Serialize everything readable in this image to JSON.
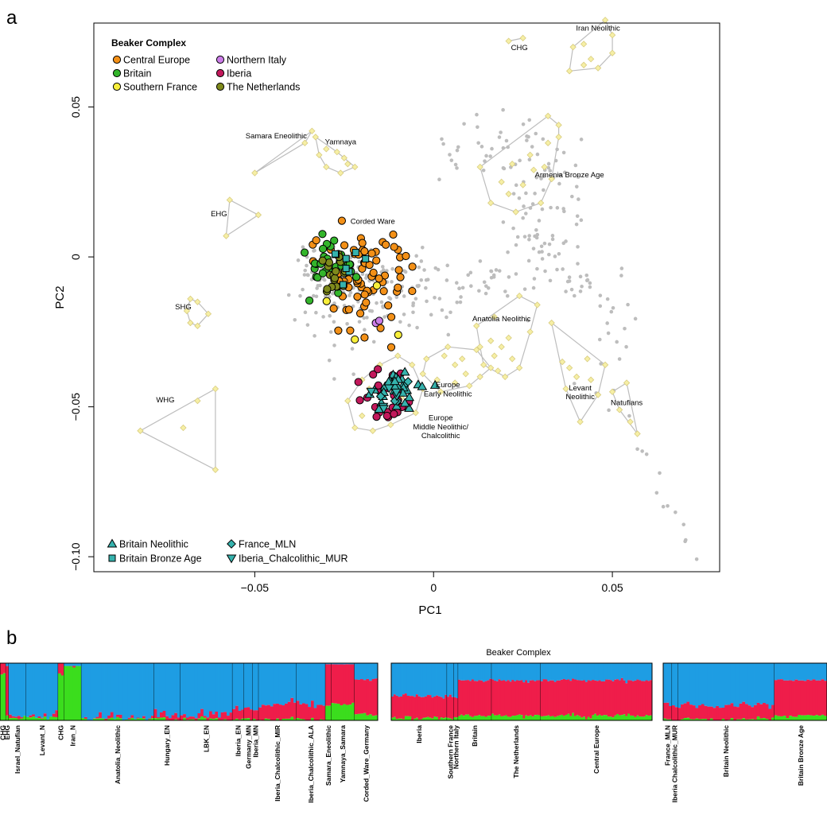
{
  "panel_a": {
    "letter": "a"
  },
  "panel_b": {
    "letter": "b"
  },
  "colors": {
    "central_europe": "#f39017",
    "britain": "#33b52b",
    "southern_france": "#f8ef3b",
    "northern_italy": "#cc7de8",
    "iberia": "#c2185b",
    "netherlands": "#7f8a1c",
    "teal": "#35b2ad",
    "ref_fill": "#f6efa5",
    "ref_stroke": "#d8cc80",
    "hull": "#bdbdbd",
    "modern": "#bdbdbd",
    "admix_red": "#ef1d4a",
    "admix_blue": "#1e9de3",
    "admix_green": "#3bdd1d",
    "admix_yellow": "#f1e33a",
    "admix_magenta": "#d22ad8"
  },
  "chart_data": [
    {
      "type": "scatter",
      "title": "",
      "xlabel": "PC1",
      "ylabel": "PC2",
      "xlim": [
        -0.095,
        0.08
      ],
      "ylim": [
        -0.105,
        0.078
      ],
      "x_ticks": [
        -0.05,
        0,
        0.05
      ],
      "x_tick_labels": [
        "−0.05",
        "0",
        "0.05"
      ],
      "y_ticks": [
        -0.1,
        -0.05,
        0,
        0.05
      ],
      "y_tick_labels": [
        "−0.10",
        "−0.05",
        "0",
        "0.05"
      ],
      "legend_top": {
        "title": "Beaker Complex",
        "placement": "top-left",
        "entries": [
          {
            "label": "Central Europe",
            "color": "central_europe"
          },
          {
            "label": "Northern Italy",
            "color": "northern_italy"
          },
          {
            "label": "Britain",
            "color": "britain"
          },
          {
            "label": "Iberia",
            "color": "iberia"
          },
          {
            "label": "Southern France",
            "color": "southern_france"
          },
          {
            "label": "The Netherlands",
            "color": "netherlands"
          }
        ]
      },
      "legend_bottom": {
        "placement": "bottom-left",
        "entries": [
          {
            "label": "Britain Neolithic",
            "shape": "triangle-up"
          },
          {
            "label": "France_MLN",
            "shape": "diamond"
          },
          {
            "label": "Britain Bronze Age",
            "shape": "square"
          },
          {
            "label": "Iberia_Chalcolithic_MUR",
            "shape": "triangle-down"
          }
        ]
      },
      "group_labels": [
        {
          "text": "Iran Neolithic",
          "x": 0.046,
          "y": 0.0755
        },
        {
          "text": "CHG",
          "x": 0.024,
          "y": 0.069
        },
        {
          "text": "Samara Eneolithic",
          "x": -0.044,
          "y": 0.0395
        },
        {
          "text": "Yamnaya",
          "x": -0.026,
          "y": 0.0375
        },
        {
          "text": "Armenia Bronze Age",
          "x": 0.038,
          "y": 0.0265
        },
        {
          "text": "EHG",
          "x": -0.06,
          "y": 0.0135
        },
        {
          "text": "Corded Ware",
          "x": -0.017,
          "y": 0.011
        },
        {
          "text": "SHG",
          "x": -0.07,
          "y": -0.0175
        },
        {
          "text": "Anatolia Neolithic",
          "x": 0.019,
          "y": -0.0215
        },
        {
          "text": "Europe",
          "x": 0.004,
          "y": -0.0435
        },
        {
          "text": "Early Neolithic",
          "x": 0.004,
          "y": -0.0465
        },
        {
          "text": "Levant",
          "x": 0.041,
          "y": -0.0445
        },
        {
          "text": "Neolithic",
          "x": 0.041,
          "y": -0.0475
        },
        {
          "text": "Natufians",
          "x": 0.054,
          "y": -0.0495
        },
        {
          "text": "WHG",
          "x": -0.075,
          "y": -0.0485
        },
        {
          "text": "Europe",
          "x": 0.002,
          "y": -0.0545
        },
        {
          "text": "Middle Neolithic/",
          "x": 0.002,
          "y": -0.0575
        },
        {
          "text": "Chalcolithic",
          "x": 0.002,
          "y": -0.0605
        }
      ],
      "reference_groups": [
        {
          "name": "Iran Neolithic",
          "points": [
            [
              0.042,
              0.071
            ],
            [
              0.048,
              0.079
            ],
            [
              0.05,
              0.074
            ],
            [
              0.05,
              0.068
            ],
            [
              0.046,
              0.063
            ],
            [
              0.042,
              0.064
            ],
            [
              0.038,
              0.062
            ],
            [
              0.039,
              0.07
            ],
            [
              0.044,
              0.066
            ]
          ]
        },
        {
          "name": "CHG",
          "points": [
            [
              0.021,
              0.072
            ],
            [
              0.025,
              0.073
            ]
          ]
        },
        {
          "name": "Samara Eneolithic",
          "points": [
            [
              -0.05,
              0.028
            ],
            [
              -0.034,
              0.042
            ],
            [
              -0.036,
              0.038
            ]
          ]
        },
        {
          "name": "Yamnaya",
          "points": [
            [
              -0.033,
              0.04
            ],
            [
              -0.03,
              0.036
            ],
            [
              -0.027,
              0.035
            ],
            [
              -0.024,
              0.031
            ],
            [
              -0.022,
              0.03
            ],
            [
              -0.026,
              0.028
            ],
            [
              -0.03,
              0.03
            ],
            [
              -0.025,
              0.033
            ],
            [
              -0.032,
              0.034
            ]
          ]
        },
        {
          "name": "EHG",
          "points": [
            [
              -0.057,
              0.019
            ],
            [
              -0.049,
              0.014
            ],
            [
              -0.058,
              0.007
            ]
          ]
        },
        {
          "name": "SHG",
          "points": [
            [
              -0.068,
              -0.014
            ],
            [
              -0.066,
              -0.015
            ],
            [
              -0.063,
              -0.019
            ],
            [
              -0.066,
              -0.023
            ],
            [
              -0.068,
              -0.022
            ],
            [
              -0.069,
              -0.018
            ]
          ]
        },
        {
          "name": "WHG",
          "points": [
            [
              -0.082,
              -0.058
            ],
            [
              -0.061,
              -0.044
            ],
            [
              -0.07,
              -0.057
            ],
            [
              -0.066,
              -0.048
            ],
            [
              -0.061,
              -0.071
            ]
          ]
        },
        {
          "name": "Armenia Bronze Age",
          "points": [
            [
              0.013,
              0.03
            ],
            [
              0.022,
              0.031
            ],
            [
              0.027,
              0.034
            ],
            [
              0.032,
              0.038
            ],
            [
              0.033,
              0.026
            ],
            [
              0.03,
              0.018
            ],
            [
              0.023,
              0.015
            ],
            [
              0.016,
              0.018
            ],
            [
              0.019,
              0.025
            ],
            [
              0.025,
              0.024
            ],
            [
              0.028,
              0.029
            ],
            [
              0.021,
              0.021
            ],
            [
              0.032,
              0.047
            ],
            [
              0.035,
              0.044
            ],
            [
              0.035,
              0.04
            ],
            [
              0.031,
              0.03
            ]
          ]
        },
        {
          "name": "Anatolia Neolithic",
          "points": [
            [
              0.012,
              -0.023
            ],
            [
              0.017,
              -0.02
            ],
            [
              0.024,
              -0.013
            ],
            [
              0.029,
              -0.016
            ],
            [
              0.027,
              -0.025
            ],
            [
              0.02,
              -0.04
            ],
            [
              0.014,
              -0.036
            ],
            [
              0.016,
              -0.028
            ],
            [
              0.019,
              -0.03
            ],
            [
              0.022,
              -0.034
            ],
            [
              0.017,
              -0.033
            ],
            [
              0.013,
              -0.03
            ],
            [
              0.021,
              -0.027
            ],
            [
              0.018,
              -0.038
            ],
            [
              0.024,
              -0.037
            ]
          ]
        },
        {
          "name": "Europe Early Neolithic",
          "points": [
            [
              -0.002,
              -0.034
            ],
            [
              0.004,
              -0.03
            ],
            [
              0.012,
              -0.031
            ],
            [
              0.016,
              -0.037
            ],
            [
              0.01,
              -0.043
            ],
            [
              0.002,
              -0.045
            ],
            [
              -0.003,
              -0.039
            ],
            [
              0.006,
              -0.036
            ],
            [
              0.009,
              -0.039
            ],
            [
              0.001,
              -0.041
            ],
            [
              0.006,
              -0.042
            ],
            [
              0.013,
              -0.04
            ],
            [
              0.003,
              -0.033
            ],
            [
              0.008,
              -0.034
            ]
          ]
        },
        {
          "name": "Europe Middle Neolithic/Chalcolithic",
          "points": [
            [
              -0.022,
              -0.057
            ],
            [
              -0.024,
              -0.048
            ],
            [
              -0.02,
              -0.041
            ],
            [
              -0.015,
              -0.036
            ],
            [
              -0.01,
              -0.033
            ],
            [
              -0.006,
              -0.036
            ],
            [
              -0.003,
              -0.044
            ],
            [
              -0.005,
              -0.052
            ],
            [
              -0.012,
              -0.056
            ],
            [
              -0.017,
              -0.058
            ],
            [
              -0.02,
              -0.053
            ],
            [
              -0.014,
              -0.05
            ],
            [
              -0.009,
              -0.047
            ],
            [
              -0.018,
              -0.044
            ],
            [
              -0.011,
              -0.041
            ]
          ]
        },
        {
          "name": "Levant Neolithic",
          "points": [
            [
              0.033,
              -0.022
            ],
            [
              0.036,
              -0.035
            ],
            [
              0.037,
              -0.044
            ],
            [
              0.041,
              -0.055
            ],
            [
              0.046,
              -0.046
            ],
            [
              0.048,
              -0.036
            ],
            [
              0.043,
              -0.034
            ],
            [
              0.04,
              -0.04
            ],
            [
              0.038,
              -0.037
            ],
            [
              0.044,
              -0.041
            ]
          ]
        },
        {
          "name": "Natufians",
          "points": [
            [
              0.05,
              -0.045
            ],
            [
              0.054,
              -0.042
            ],
            [
              0.057,
              -0.059
            ],
            [
              0.052,
              -0.051
            ],
            [
              0.055,
              -0.055
            ]
          ]
        }
      ],
      "modern_points_count": 380,
      "ancient_series": [
        {
          "name": "Central Europe",
          "color": "central_europe",
          "shape": "circle",
          "n": 75
        },
        {
          "name": "Britain",
          "color": "britain",
          "shape": "circle",
          "n": 30
        },
        {
          "name": "Southern France",
          "color": "southern_france",
          "shape": "circle",
          "n": 4
        },
        {
          "name": "Northern Italy",
          "color": "northern_italy",
          "shape": "circle",
          "n": 2
        },
        {
          "name": "Iberia",
          "color": "iberia",
          "shape": "circle",
          "n": 30
        },
        {
          "name": "The Netherlands",
          "color": "netherlands",
          "shape": "circle",
          "n": 20
        },
        {
          "name": "Britain Neolithic",
          "color": "teal",
          "shape": "triangle-up",
          "n": 30
        },
        {
          "name": "Britain Bronze Age",
          "color": "teal",
          "shape": "square",
          "n": 8
        },
        {
          "name": "France_MLN",
          "color": "teal",
          "shape": "diamond",
          "n": 4
        },
        {
          "name": "Iberia_Chalcolithic_MUR",
          "color": "teal",
          "shape": "triangle-down",
          "n": 6
        }
      ]
    },
    {
      "type": "bar",
      "title": "Beaker Complex",
      "stacked": true,
      "panels": [
        {
          "name": "reference",
          "groups": [
            {
              "label": "CHG",
              "n": 2
            },
            {
              "label": "EHG",
              "n": 1
            },
            {
              "label": "Israel_Natufian",
              "n": 6
            },
            {
              "label": "Levant_N",
              "n": 11
            },
            {
              "label": "CHG",
              "n": 2
            },
            {
              "label": "Iran_N",
              "n": 6
            },
            {
              "label": "Anatolia_Neolithic",
              "n": 25
            },
            {
              "label": "Hungary_EN",
              "n": 9
            },
            {
              "label": "LBK_EN",
              "n": 18
            },
            {
              "label": "Iberia_EN",
              "n": 4
            },
            {
              "label": "Germany_MN",
              "n": 3
            },
            {
              "label": "Iberia_MN",
              "n": 2
            },
            {
              "label": "Iberia_Chalcolithic_MIR",
              "n": 13
            },
            {
              "label": "Iberia_Chalcolithic_ALA",
              "n": 10
            },
            {
              "label": "Samara_Eneolithic",
              "n": 2
            },
            {
              "label": "Yamnaya_Samara",
              "n": 8
            },
            {
              "label": "Corded_Ware_Germany",
              "n": 8
            }
          ]
        },
        {
          "name": "beaker",
          "groups": [
            {
              "label": "Iberia",
              "n": 25
            },
            {
              "label": "Southern France",
              "n": 3
            },
            {
              "label": "Northern Italy",
              "n": 2
            },
            {
              "label": "Britain",
              "n": 15
            },
            {
              "label": "The Netherlands",
              "n": 22
            },
            {
              "label": "Central Europe",
              "n": 50
            }
          ]
        },
        {
          "name": "britain",
          "groups": [
            {
              "label": "France_MLN",
              "n": 3
            },
            {
              "label": "Iberia Chalcolithic_MUR",
              "n": 2
            },
            {
              "label": "Britain Neolithic",
              "n": 33
            },
            {
              "label": "Britain Bronze Age",
              "n": 18
            }
          ]
        }
      ]
    }
  ]
}
